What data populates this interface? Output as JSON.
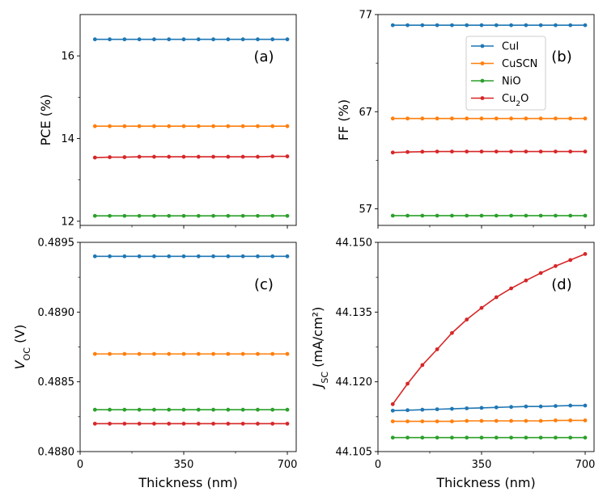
{
  "chart_data": [
    {
      "type": "line",
      "panel_label": "(a)",
      "ylabel": "PCE (%)",
      "xlabel": "",
      "xlim": [
        0,
        730
      ],
      "ylim": [
        11.9,
        17.0
      ],
      "yticks": [
        12,
        14,
        16
      ],
      "ytick_labels": [
        "12",
        "14",
        "16"
      ],
      "x": [
        50,
        100,
        150,
        200,
        250,
        300,
        350,
        400,
        450,
        500,
        550,
        600,
        650,
        700
      ],
      "series": [
        {
          "name": "CuI",
          "color": "#1f77b4",
          "values": [
            16.4,
            16.4,
            16.4,
            16.4,
            16.4,
            16.4,
            16.4,
            16.4,
            16.4,
            16.4,
            16.4,
            16.4,
            16.4,
            16.4
          ]
        },
        {
          "name": "CuSCN",
          "color": "#ff7f0e",
          "values": [
            14.3,
            14.3,
            14.3,
            14.3,
            14.3,
            14.3,
            14.3,
            14.3,
            14.3,
            14.3,
            14.3,
            14.3,
            14.3,
            14.3
          ]
        },
        {
          "name": "NiO",
          "color": "#2ca02c",
          "values": [
            12.13,
            12.13,
            12.13,
            12.13,
            12.13,
            12.13,
            12.13,
            12.13,
            12.13,
            12.13,
            12.13,
            12.13,
            12.13,
            12.13
          ]
        },
        {
          "name": "Cu2O",
          "color": "#d62728",
          "values": [
            13.54,
            13.55,
            13.55,
            13.56,
            13.56,
            13.56,
            13.56,
            13.56,
            13.56,
            13.56,
            13.56,
            13.56,
            13.57,
            13.57
          ]
        }
      ]
    },
    {
      "type": "line",
      "panel_label": "(b)",
      "ylabel": "FF (%)",
      "xlabel": "",
      "xlim": [
        0,
        730
      ],
      "ylim": [
        55.3,
        77.0
      ],
      "yticks": [
        57,
        67,
        77
      ],
      "ytick_labels": [
        "57",
        "67",
        "77"
      ],
      "x": [
        50,
        100,
        150,
        200,
        250,
        300,
        350,
        400,
        450,
        500,
        550,
        600,
        650,
        700
      ],
      "legend": {
        "position": "upper-right",
        "entries": [
          "CuI",
          "CuSCN",
          "NiO",
          "Cu2O"
        ]
      },
      "series": [
        {
          "name": "CuI",
          "color": "#1f77b4",
          "values": [
            75.9,
            75.9,
            75.9,
            75.9,
            75.9,
            75.9,
            75.9,
            75.9,
            75.9,
            75.9,
            75.9,
            75.9,
            75.9,
            75.9
          ]
        },
        {
          "name": "CuSCN",
          "color": "#ff7f0e",
          "values": [
            66.3,
            66.3,
            66.3,
            66.3,
            66.3,
            66.3,
            66.3,
            66.3,
            66.3,
            66.3,
            66.3,
            66.3,
            66.3,
            66.3
          ]
        },
        {
          "name": "NiO",
          "color": "#2ca02c",
          "values": [
            56.3,
            56.3,
            56.3,
            56.3,
            56.3,
            56.3,
            56.3,
            56.3,
            56.3,
            56.3,
            56.3,
            56.3,
            56.3,
            56.3
          ]
        },
        {
          "name": "Cu2O",
          "color": "#d62728",
          "values": [
            62.8,
            62.85,
            62.88,
            62.9,
            62.9,
            62.9,
            62.9,
            62.9,
            62.9,
            62.9,
            62.9,
            62.9,
            62.9,
            62.9
          ]
        }
      ]
    },
    {
      "type": "line",
      "panel_label": "(c)",
      "ylabel": "V_OC (V)",
      "xlabel": "Thickness (nm)",
      "xlim": [
        0,
        730
      ],
      "xticks": [
        0,
        350,
        700
      ],
      "xtick_labels": [
        "0",
        "350",
        "700"
      ],
      "ylim": [
        0.488,
        0.4895
      ],
      "yticks": [
        0.488,
        0.4885,
        0.489,
        0.4895
      ],
      "ytick_labels": [
        "0.4880",
        "0.4885",
        "0.4890",
        "0.4895"
      ],
      "x": [
        50,
        100,
        150,
        200,
        250,
        300,
        350,
        400,
        450,
        500,
        550,
        600,
        650,
        700
      ],
      "series": [
        {
          "name": "CuI",
          "color": "#1f77b4",
          "values": [
            0.4894,
            0.4894,
            0.4894,
            0.4894,
            0.4894,
            0.4894,
            0.4894,
            0.4894,
            0.4894,
            0.4894,
            0.4894,
            0.4894,
            0.4894,
            0.4894
          ]
        },
        {
          "name": "CuSCN",
          "color": "#ff7f0e",
          "values": [
            0.4887,
            0.4887,
            0.4887,
            0.4887,
            0.4887,
            0.4887,
            0.4887,
            0.4887,
            0.4887,
            0.4887,
            0.4887,
            0.4887,
            0.4887,
            0.4887
          ]
        },
        {
          "name": "NiO",
          "color": "#2ca02c",
          "values": [
            0.4883,
            0.4883,
            0.4883,
            0.4883,
            0.4883,
            0.4883,
            0.4883,
            0.4883,
            0.4883,
            0.4883,
            0.4883,
            0.4883,
            0.4883,
            0.4883
          ]
        },
        {
          "name": "Cu2O",
          "color": "#d62728",
          "values": [
            0.4882,
            0.4882,
            0.4882,
            0.4882,
            0.4882,
            0.4882,
            0.4882,
            0.4882,
            0.4882,
            0.4882,
            0.4882,
            0.4882,
            0.4882,
            0.4882
          ]
        }
      ]
    },
    {
      "type": "line",
      "panel_label": "(d)",
      "ylabel": "J_SC (mA/cm²)",
      "xlabel": "Thickness (nm)",
      "xlim": [
        0,
        730
      ],
      "xticks": [
        0,
        350,
        700
      ],
      "xtick_labels": [
        "0",
        "350",
        "700"
      ],
      "ylim": [
        44.105,
        44.15
      ],
      "yticks": [
        44.105,
        44.12,
        44.135,
        44.15
      ],
      "ytick_labels": [
        "44.105",
        "44.120",
        "44.135",
        "44.150"
      ],
      "x": [
        50,
        100,
        150,
        200,
        250,
        300,
        350,
        400,
        450,
        500,
        550,
        600,
        650,
        700
      ],
      "series": [
        {
          "name": "CuI",
          "color": "#1f77b4",
          "values": [
            44.1138,
            44.1139,
            44.114,
            44.1141,
            44.1142,
            44.1143,
            44.1144,
            44.1145,
            44.1146,
            44.1147,
            44.1147,
            44.1148,
            44.1149,
            44.1149
          ]
        },
        {
          "name": "CuSCN",
          "color": "#ff7f0e",
          "values": [
            44.1115,
            44.1115,
            44.1115,
            44.1115,
            44.1115,
            44.1116,
            44.1116,
            44.1116,
            44.1116,
            44.1116,
            44.1116,
            44.1117,
            44.1117,
            44.1117
          ]
        },
        {
          "name": "NiO",
          "color": "#2ca02c",
          "values": [
            44.108,
            44.108,
            44.108,
            44.108,
            44.108,
            44.108,
            44.108,
            44.108,
            44.108,
            44.108,
            44.108,
            44.108,
            44.108,
            44.108
          ]
        },
        {
          "name": "Cu2O",
          "color": "#d62728",
          "values": [
            44.1152,
            44.1196,
            44.1236,
            44.127,
            44.1305,
            44.1334,
            44.1359,
            44.1382,
            44.1401,
            44.1418,
            44.1434,
            44.1449,
            44.1462,
            44.1475
          ]
        }
      ]
    }
  ]
}
